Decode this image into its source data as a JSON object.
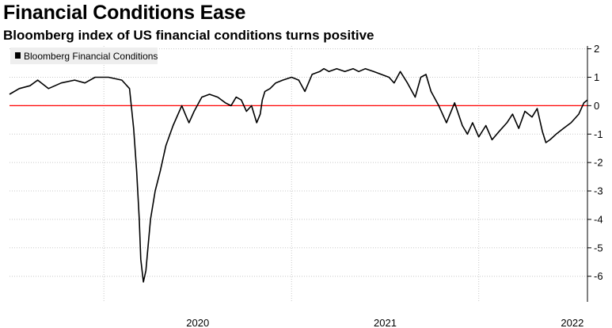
{
  "chart_data": {
    "type": "line",
    "title": "Financial Conditions Ease",
    "subtitle": "Bloomberg index of US financial conditions turns positive",
    "xlabel": "",
    "ylabel": "",
    "ylim": [
      -6.9,
      2.1
    ],
    "y_ticks": [
      "2",
      "1",
      "0",
      "-1",
      "-2",
      "-3",
      "-4",
      "-5",
      "-6"
    ],
    "x_ticks": [
      "2020",
      "2021",
      "2022"
    ],
    "x_range": [
      "2019-07-01",
      "2022-08-01"
    ],
    "grid": "dotted",
    "legend_position": "top-left",
    "reference_line": {
      "value": 0,
      "color": "#ff0000"
    },
    "series": [
      {
        "name": "Bloomberg Financial Conditions",
        "color": "#000000",
        "x": [
          "2019-07-01",
          "2019-07-20",
          "2019-08-10",
          "2019-08-25",
          "2019-09-15",
          "2019-10-10",
          "2019-11-05",
          "2019-11-25",
          "2019-12-15",
          "2020-01-10",
          "2020-02-05",
          "2020-02-20",
          "2020-02-28",
          "2020-03-05",
          "2020-03-10",
          "2020-03-13",
          "2020-03-18",
          "2020-03-23",
          "2020-03-26",
          "2020-04-01",
          "2020-04-10",
          "2020-04-20",
          "2020-05-01",
          "2020-05-15",
          "2020-06-01",
          "2020-06-10",
          "2020-06-15",
          "2020-06-25",
          "2020-07-10",
          "2020-07-25",
          "2020-08-10",
          "2020-08-25",
          "2020-09-05",
          "2020-09-15",
          "2020-09-25",
          "2020-10-05",
          "2020-10-15",
          "2020-10-25",
          "2020-11-01",
          "2020-11-05",
          "2020-11-10",
          "2020-11-20",
          "2020-12-01",
          "2020-12-15",
          "2021-01-01",
          "2021-01-15",
          "2021-01-27",
          "2021-02-10",
          "2021-02-25",
          "2021-03-05",
          "2021-03-15",
          "2021-03-30",
          "2021-04-15",
          "2021-05-01",
          "2021-05-12",
          "2021-05-25",
          "2021-06-10",
          "2021-06-25",
          "2021-07-10",
          "2021-07-20",
          "2021-08-01",
          "2021-08-15",
          "2021-08-30",
          "2021-09-10",
          "2021-09-20",
          "2021-09-30",
          "2021-10-15",
          "2021-10-30",
          "2021-11-15",
          "2021-11-30",
          "2021-12-10",
          "2021-12-20",
          "2022-01-01",
          "2022-01-15",
          "2022-01-27",
          "2022-02-10",
          "2022-02-25",
          "2022-03-08",
          "2022-03-20",
          "2022-04-01",
          "2022-04-15",
          "2022-04-25",
          "2022-05-05",
          "2022-05-12",
          "2022-05-20",
          "2022-06-01",
          "2022-06-15",
          "2022-06-30",
          "2022-07-15",
          "2022-07-25",
          "2022-08-01"
        ],
        "values": [
          0.4,
          0.6,
          0.7,
          0.9,
          0.6,
          0.8,
          0.9,
          0.8,
          1.0,
          1.0,
          0.9,
          0.6,
          -0.8,
          -2.3,
          -4.0,
          -5.4,
          -6.2,
          -5.8,
          -5.2,
          -4.0,
          -3.0,
          -2.3,
          -1.4,
          -0.7,
          0.0,
          -0.4,
          -0.6,
          -0.2,
          0.3,
          0.4,
          0.3,
          0.1,
          0.0,
          0.3,
          0.2,
          -0.2,
          0.0,
          -0.6,
          -0.3,
          0.2,
          0.5,
          0.6,
          0.8,
          0.9,
          1.0,
          0.9,
          0.5,
          1.1,
          1.2,
          1.3,
          1.2,
          1.3,
          1.2,
          1.3,
          1.2,
          1.3,
          1.2,
          1.1,
          1.0,
          0.8,
          1.2,
          0.8,
          0.3,
          1.0,
          1.1,
          0.5,
          0.0,
          -0.6,
          0.1,
          -0.7,
          -1.0,
          -0.6,
          -1.1,
          -0.7,
          -1.2,
          -0.9,
          -0.6,
          -0.3,
          -0.8,
          -0.2,
          -0.4,
          -0.1,
          -0.9,
          -1.3,
          -1.2,
          -1.0,
          -0.8,
          -0.6,
          -0.3,
          0.1,
          0.2
        ]
      }
    ]
  }
}
